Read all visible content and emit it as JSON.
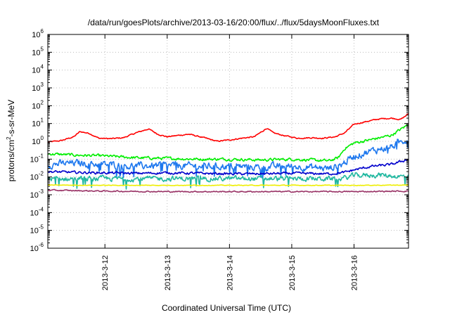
{
  "chart_data": {
    "type": "line",
    "title": "/data/run/goesPlots/archive/2013-03-16/20:00/flux/../flux/5daysMoonFluxes.txt",
    "xlabel": "Coordinated Universal Time (UTC)",
    "ylabel_parts": {
      "base": "protons/cm",
      "sup": "2",
      "rest": "-s-sr-MeV"
    },
    "yscale": "log",
    "ylim_exp": [
      -6,
      6
    ],
    "ytick_base": "10",
    "yticks_exp": [
      "-6",
      "-5",
      "-4",
      "-3",
      "-2",
      "-1",
      "0",
      "1",
      "2",
      "3",
      "4",
      "5",
      "6"
    ],
    "xlim_days": [
      2013.0311,
      2013.0317
    ],
    "x_range": [
      "2013-03-11 02:00",
      "2013-03-16 21:00"
    ],
    "xticks": [
      {
        "label": "2013-3-12",
        "pos": 1
      },
      {
        "label": "2013-3-13",
        "pos": 2
      },
      {
        "label": "2013-3-14",
        "pos": 3
      },
      {
        "label": "2013-3-15",
        "pos": 4
      },
      {
        "label": "2013-3-16",
        "pos": 5
      }
    ],
    "x_start_offset": 0.083,
    "x_end_offset": 5.875,
    "grid": true,
    "series": [
      {
        "color": "#ff0000",
        "noise": 0.06,
        "points": [
          [
            0.083,
            0.9
          ],
          [
            0.3,
            1.1
          ],
          [
            0.5,
            1.8
          ],
          [
            0.6,
            3.5
          ],
          [
            0.75,
            2.8
          ],
          [
            0.9,
            1.5
          ],
          [
            1.1,
            1.4
          ],
          [
            1.3,
            1.6
          ],
          [
            1.5,
            3.0
          ],
          [
            1.7,
            5.0
          ],
          [
            1.85,
            2.5
          ],
          [
            2.0,
            1.8
          ],
          [
            2.2,
            2.2
          ],
          [
            2.35,
            2.5
          ],
          [
            2.5,
            1.9
          ],
          [
            2.65,
            1.4
          ],
          [
            2.8,
            1.0
          ],
          [
            3.0,
            1.2
          ],
          [
            3.2,
            1.5
          ],
          [
            3.4,
            1.8
          ],
          [
            3.6,
            5.5
          ],
          [
            3.7,
            3.0
          ],
          [
            3.9,
            2.0
          ],
          [
            4.1,
            1.5
          ],
          [
            4.3,
            1.6
          ],
          [
            4.5,
            1.5
          ],
          [
            4.7,
            1.8
          ],
          [
            4.85,
            3.0
          ],
          [
            5.0,
            9.0
          ],
          [
            5.2,
            13.0
          ],
          [
            5.4,
            18.0
          ],
          [
            5.6,
            20.0
          ],
          [
            5.75,
            17.0
          ],
          [
            5.875,
            35.0
          ]
        ]
      },
      {
        "color": "#00ee00",
        "noise": 0.14,
        "points": [
          [
            0.083,
            0.2
          ],
          [
            0.5,
            0.17
          ],
          [
            1.0,
            0.15
          ],
          [
            1.5,
            0.12
          ],
          [
            2.0,
            0.11
          ],
          [
            2.5,
            0.1
          ],
          [
            3.0,
            0.1
          ],
          [
            3.5,
            0.09
          ],
          [
            4.0,
            0.1
          ],
          [
            4.6,
            0.08
          ],
          [
            4.75,
            0.12
          ],
          [
            4.85,
            0.4
          ],
          [
            5.0,
            0.8
          ],
          [
            5.3,
            1.3
          ],
          [
            5.6,
            2.2
          ],
          [
            5.875,
            9.0
          ]
        ]
      },
      {
        "color": "#1e78ee",
        "noise": 0.35,
        "points": [
          [
            0.083,
            0.05
          ],
          [
            0.5,
            0.06
          ],
          [
            1.0,
            0.05
          ],
          [
            1.5,
            0.04
          ],
          [
            2.0,
            0.045
          ],
          [
            2.5,
            0.04
          ],
          [
            3.0,
            0.04
          ],
          [
            3.5,
            0.035
          ],
          [
            4.0,
            0.04
          ],
          [
            4.6,
            0.03
          ],
          [
            4.8,
            0.05
          ],
          [
            5.0,
            0.15
          ],
          [
            5.3,
            0.3
          ],
          [
            5.6,
            0.5
          ],
          [
            5.875,
            1.5
          ]
        ]
      },
      {
        "color": "#0000cc",
        "noise": 0.12,
        "points": [
          [
            0.083,
            0.02
          ],
          [
            0.5,
            0.018
          ],
          [
            1.0,
            0.017
          ],
          [
            1.5,
            0.016
          ],
          [
            2.0,
            0.017
          ],
          [
            2.5,
            0.016
          ],
          [
            3.0,
            0.015
          ],
          [
            3.5,
            0.015
          ],
          [
            4.0,
            0.016
          ],
          [
            4.6,
            0.015
          ],
          [
            4.85,
            0.018
          ],
          [
            5.0,
            0.025
          ],
          [
            5.3,
            0.04
          ],
          [
            5.6,
            0.05
          ],
          [
            5.875,
            0.1
          ]
        ]
      },
      {
        "color": "#20b8a0",
        "noise": 0.25,
        "points": [
          [
            0.083,
            0.008
          ],
          [
            1.0,
            0.008
          ],
          [
            2.0,
            0.008
          ],
          [
            3.0,
            0.008
          ],
          [
            4.0,
            0.008
          ],
          [
            4.8,
            0.008
          ],
          [
            5.0,
            0.012
          ],
          [
            5.4,
            0.013
          ],
          [
            5.875,
            0.01
          ]
        ]
      },
      {
        "color": "#eeee00",
        "noise": 0.03,
        "points": [
          [
            0.083,
            0.0035
          ],
          [
            1.0,
            0.0034
          ],
          [
            2.0,
            0.0034
          ],
          [
            3.0,
            0.0034
          ],
          [
            4.0,
            0.0034
          ],
          [
            5.0,
            0.0034
          ],
          [
            5.875,
            0.0035
          ]
        ]
      },
      {
        "color": "#993366",
        "noise": 0.06,
        "points": [
          [
            0.083,
            0.0018
          ],
          [
            1.0,
            0.0016
          ],
          [
            2.0,
            0.0015
          ],
          [
            3.0,
            0.0015
          ],
          [
            4.0,
            0.0015
          ],
          [
            5.0,
            0.0015
          ],
          [
            5.875,
            0.0016
          ]
        ]
      }
    ]
  }
}
